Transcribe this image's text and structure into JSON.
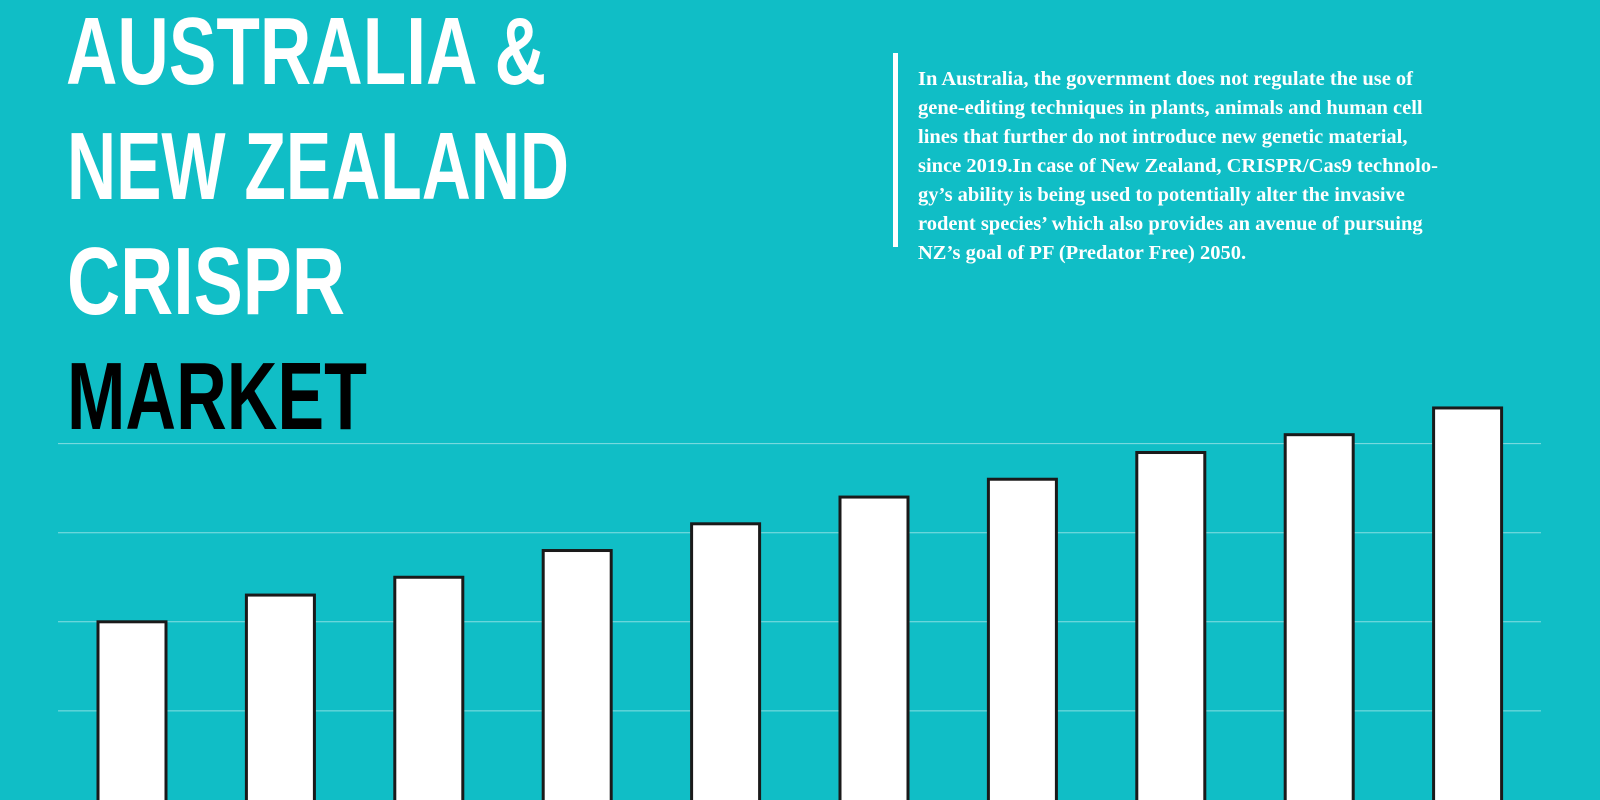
{
  "chart_data": {
    "type": "bar",
    "title_lines": [
      "AUSTRALIA &",
      "NEW ZEALAND",
      "CRISPR",
      "MARKET"
    ],
    "description_lines": [
      "In Australia, the government does not regulate the use of",
      "gene-editing techniques in plants, animals and human cell",
      "lines that further do not introduce new genetic material,",
      "since 2019.In case of New Zealand, CRISPR/Cas9 technolo-",
      "gy’s ability is being used to potentially alter the invasive",
      "rodent species’ which also provides an avenue of pursuing",
      "NZ’s goal of PF (Predator Free) 2050."
    ],
    "values": [
      2.0,
      2.3,
      2.5,
      2.8,
      3.1,
      3.4,
      3.6,
      3.9,
      4.1,
      4.4
    ],
    "color": "#ffffff",
    "ylim": [
      0,
      5
    ],
    "yticks": [
      1,
      2,
      3,
      4
    ],
    "grid": true
  }
}
